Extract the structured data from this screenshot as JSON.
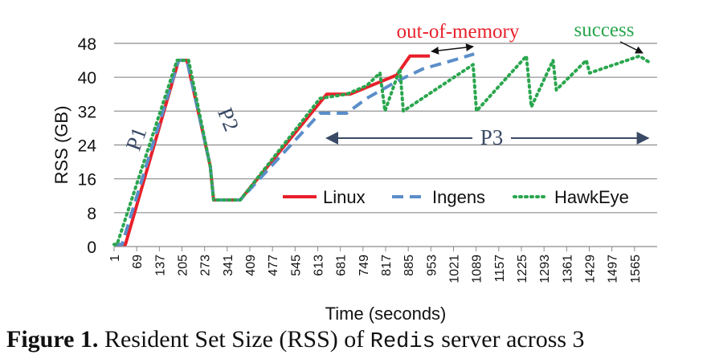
{
  "chart_data": {
    "type": "line",
    "title": "",
    "xlabel": "Time (seconds)",
    "ylabel": "RSS (GB)",
    "xlim": [
      1,
      1633
    ],
    "ylim": [
      0,
      48
    ],
    "yticks": [
      0,
      8,
      16,
      24,
      32,
      40,
      48
    ],
    "xticks": [
      "1",
      "69",
      "137",
      "205",
      "273",
      "341",
      "409",
      "477",
      "545",
      "613",
      "681",
      "749",
      "817",
      "885",
      "953",
      "1021",
      "1089",
      "1157",
      "1225",
      "1293",
      "1361",
      "1429",
      "1497",
      "1565"
    ],
    "grid": "horizontal",
    "legend_position": "bottom-right inside plot",
    "series": [
      {
        "name": "Linux",
        "color": "#e8202a",
        "style": "solid",
        "points": [
          [
            1,
            0.5
          ],
          [
            35,
            0.5
          ],
          [
            195,
            44
          ],
          [
            220,
            44
          ],
          [
            290,
            19
          ],
          [
            300,
            11
          ],
          [
            380,
            11
          ],
          [
            640,
            36
          ],
          [
            710,
            36
          ],
          [
            850,
            40.5
          ],
          [
            890,
            45
          ],
          [
            950,
            45
          ]
        ]
      },
      {
        "name": "Ingens",
        "color": "#5b8ec9",
        "style": "dashed",
        "points": [
          [
            1,
            0.5
          ],
          [
            25,
            0.5
          ],
          [
            195,
            44
          ],
          [
            220,
            44
          ],
          [
            290,
            19
          ],
          [
            300,
            11
          ],
          [
            380,
            11
          ],
          [
            620,
            31.5
          ],
          [
            700,
            31.5
          ],
          [
            760,
            35
          ],
          [
            850,
            39
          ],
          [
            930,
            42
          ],
          [
            1020,
            44
          ],
          [
            1083,
            45.5
          ]
        ]
      },
      {
        "name": "HawkEye",
        "color": "#2aa64e",
        "style": "dotted",
        "points": [
          [
            1,
            0.5
          ],
          [
            10,
            0.5
          ],
          [
            190,
            44
          ],
          [
            225,
            44
          ],
          [
            290,
            19
          ],
          [
            300,
            11
          ],
          [
            380,
            11
          ],
          [
            620,
            35
          ],
          [
            700,
            36
          ],
          [
            760,
            38
          ],
          [
            800,
            41
          ],
          [
            815,
            32
          ],
          [
            860,
            42
          ],
          [
            870,
            32
          ],
          [
            1080,
            43
          ],
          [
            1090,
            32
          ],
          [
            1240,
            45
          ],
          [
            1255,
            33
          ],
          [
            1320,
            44
          ],
          [
            1330,
            37
          ],
          [
            1420,
            44
          ],
          [
            1430,
            41
          ],
          [
            1580,
            45
          ],
          [
            1610,
            43.5
          ]
        ]
      }
    ],
    "annotations": [
      {
        "text": "out-of-memory",
        "color": "#e8202a"
      },
      {
        "text": "success",
        "color": "#2aa64e"
      },
      {
        "text": "P1",
        "color": "#3a4a66"
      },
      {
        "text": "P2",
        "color": "#3a4a66"
      },
      {
        "text": "P3",
        "color": "#3a4a66"
      }
    ]
  },
  "caption": {
    "figure_label": "Figure 1.",
    "text_before": " Resident Set Size (RSS) of ",
    "code": "Redis",
    "text_after": " server across 3"
  }
}
